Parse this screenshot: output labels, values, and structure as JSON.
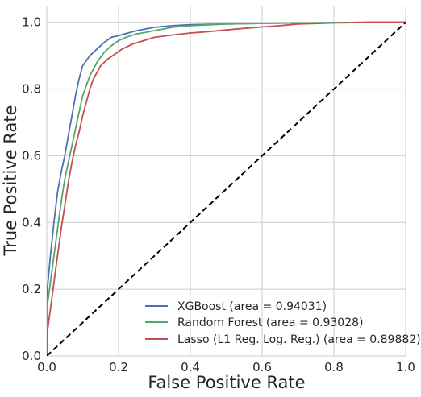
{
  "chart_data": {
    "type": "line",
    "title": "",
    "xlabel": "False Positive Rate",
    "ylabel": "True Positive Rate",
    "xlim": [
      0.0,
      1.0
    ],
    "ylim": [
      0.0,
      1.05
    ],
    "xticks": [
      "0.0",
      "0.2",
      "0.4",
      "0.6",
      "0.8",
      "1.0"
    ],
    "yticks": [
      "0.0",
      "0.2",
      "0.4",
      "0.6",
      "0.8",
      "1.0"
    ],
    "grid": true,
    "legend_position": "lower-right",
    "series": [
      {
        "name": "XGBoost (area = 0.94031)",
        "color": "#4c72b0",
        "x": [
          0.0,
          0.0,
          0.005,
          0.01,
          0.02,
          0.03,
          0.04,
          0.05,
          0.06,
          0.07,
          0.08,
          0.09,
          0.1,
          0.12,
          0.14,
          0.16,
          0.18,
          0.2,
          0.25,
          0.3,
          0.35,
          0.4,
          0.5,
          0.6,
          0.7,
          0.8,
          0.9,
          1.0
        ],
        "y": [
          0.0,
          0.18,
          0.24,
          0.3,
          0.4,
          0.49,
          0.55,
          0.6,
          0.66,
          0.72,
          0.78,
          0.83,
          0.87,
          0.9,
          0.92,
          0.94,
          0.955,
          0.96,
          0.975,
          0.985,
          0.99,
          0.993,
          0.995,
          0.997,
          0.998,
          0.999,
          1.0,
          1.0
        ]
      },
      {
        "name": "Random Forest (area = 0.93028)",
        "color": "#55a868",
        "x": [
          0.0,
          0.0,
          0.01,
          0.02,
          0.03,
          0.04,
          0.05,
          0.06,
          0.07,
          0.08,
          0.09,
          0.1,
          0.12,
          0.14,
          0.16,
          0.18,
          0.2,
          0.22,
          0.25,
          0.3,
          0.35,
          0.4,
          0.5,
          0.6,
          0.7,
          0.8,
          0.9,
          1.0
        ],
        "y": [
          0.0,
          0.14,
          0.22,
          0.3,
          0.38,
          0.46,
          0.53,
          0.58,
          0.63,
          0.68,
          0.73,
          0.78,
          0.84,
          0.88,
          0.91,
          0.93,
          0.945,
          0.955,
          0.965,
          0.975,
          0.985,
          0.99,
          0.995,
          0.997,
          0.998,
          0.999,
          1.0,
          1.0
        ]
      },
      {
        "name": "Lasso (L1 Reg. Log. Reg.) (area = 0.89882)",
        "color": "#c44e52",
        "x": [
          0.0,
          0.0,
          0.01,
          0.02,
          0.03,
          0.04,
          0.05,
          0.06,
          0.07,
          0.08,
          0.09,
          0.1,
          0.11,
          0.12,
          0.13,
          0.14,
          0.15,
          0.17,
          0.19,
          0.21,
          0.24,
          0.27,
          0.3,
          0.35,
          0.4,
          0.45,
          0.5,
          0.55,
          0.6,
          0.65,
          0.7,
          0.8,
          0.9,
          1.0
        ],
        "y": [
          0.0,
          0.06,
          0.14,
          0.22,
          0.3,
          0.38,
          0.45,
          0.52,
          0.58,
          0.63,
          0.67,
          0.72,
          0.76,
          0.8,
          0.83,
          0.85,
          0.87,
          0.89,
          0.905,
          0.92,
          0.935,
          0.945,
          0.955,
          0.962,
          0.968,
          0.972,
          0.977,
          0.982,
          0.986,
          0.99,
          0.995,
          0.998,
          1.0,
          1.0
        ]
      }
    ],
    "reference_line": {
      "x": [
        0.0,
        1.0
      ],
      "y": [
        0.0,
        1.0
      ],
      "color": "#000000",
      "style": "dashed"
    }
  }
}
